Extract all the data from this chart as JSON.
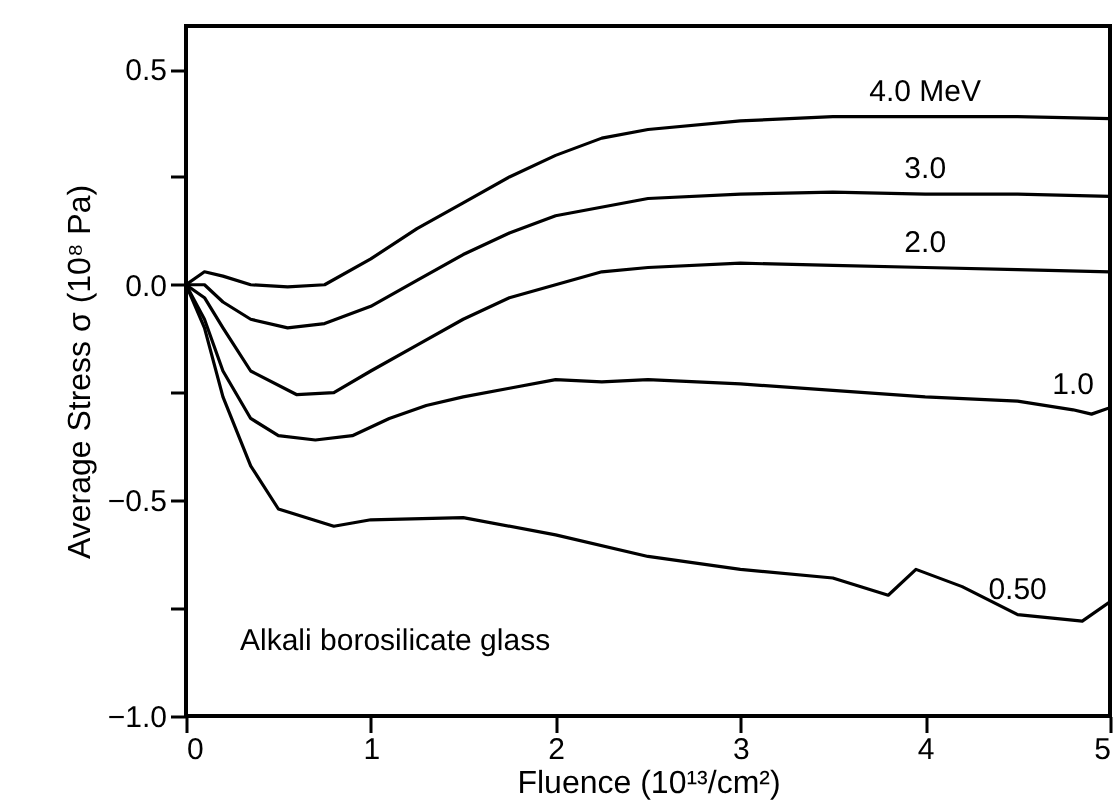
{
  "chart_data": {
    "type": "line",
    "xlabel": "Fluence (10¹³/cm²)",
    "ylabel": "Average Stress σ (10⁸ Pa)",
    "xlim": [
      0,
      5
    ],
    "xticks": [
      0,
      1,
      2,
      3,
      4,
      5
    ],
    "ylim": [
      -1.0,
      0.6
    ],
    "yticks": [
      {
        "value": -1,
        "label": "−1.0"
      },
      {
        "value": -0.75,
        "label": null
      },
      {
        "value": -0.5,
        "label": "−0.5"
      },
      {
        "value": -0.25,
        "label": null
      },
      {
        "value": 0,
        "label": "0.0"
      },
      {
        "value": 0.25,
        "label": null
      },
      {
        "value": 0.5,
        "label": "0.5"
      }
    ],
    "line_style": "solid",
    "annotations": [
      "Alkali borosilicate glass"
    ],
    "series": [
      {
        "name": "4.0 MeV",
        "color": "#000000",
        "x": [
          0,
          0.1,
          0.2,
          0.35,
          0.55,
          0.75,
          1.0,
          1.25,
          1.5,
          1.75,
          2.0,
          2.25,
          2.5,
          3.0,
          3.5,
          4.0,
          4.5,
          5.0
        ],
        "values": [
          0,
          0.03,
          0.02,
          0.0,
          -0.005,
          0.0,
          0.06,
          0.13,
          0.19,
          0.25,
          0.3,
          0.34,
          0.36,
          0.38,
          0.39,
          0.39,
          0.39,
          0.385
        ]
      },
      {
        "name": "3.0",
        "color": "#000000",
        "x": [
          0,
          0.1,
          0.2,
          0.35,
          0.55,
          0.75,
          1.0,
          1.25,
          1.5,
          1.75,
          2.0,
          2.5,
          3.0,
          3.5,
          4.0,
          4.5,
          5.0
        ],
        "values": [
          0,
          0.0,
          -0.04,
          -0.08,
          -0.1,
          -0.09,
          -0.05,
          0.01,
          0.07,
          0.12,
          0.16,
          0.2,
          0.21,
          0.215,
          0.21,
          0.21,
          0.205
        ]
      },
      {
        "name": "2.0",
        "color": "#000000",
        "x": [
          0,
          0.1,
          0.2,
          0.35,
          0.6,
          0.8,
          1.0,
          1.25,
          1.5,
          1.75,
          2.0,
          2.25,
          2.5,
          3.0,
          3.5,
          4.0,
          4.5,
          5.0
        ],
        "values": [
          0,
          -0.03,
          -0.1,
          -0.2,
          -0.255,
          -0.25,
          -0.2,
          -0.14,
          -0.08,
          -0.03,
          0.0,
          0.03,
          0.04,
          0.05,
          0.045,
          0.04,
          0.035,
          0.03
        ]
      },
      {
        "name": "1.0",
        "color": "#000000",
        "x": [
          0,
          0.1,
          0.2,
          0.35,
          0.5,
          0.7,
          0.9,
          1.1,
          1.3,
          1.5,
          1.75,
          2.0,
          2.25,
          2.5,
          3.0,
          3.5,
          4.0,
          4.5,
          4.8,
          4.9,
          5.0
        ],
        "values": [
          0,
          -0.08,
          -0.2,
          -0.31,
          -0.35,
          -0.36,
          -0.35,
          -0.31,
          -0.28,
          -0.26,
          -0.24,
          -0.22,
          -0.225,
          -0.22,
          -0.23,
          -0.245,
          -0.26,
          -0.27,
          -0.29,
          -0.3,
          -0.285
        ]
      },
      {
        "name": "0.50",
        "color": "#000000",
        "x": [
          0,
          0.1,
          0.2,
          0.35,
          0.5,
          0.8,
          1.0,
          1.5,
          2.0,
          2.5,
          3.0,
          3.5,
          3.8,
          3.95,
          4.2,
          4.5,
          4.85,
          5.0
        ],
        "values": [
          0,
          -0.1,
          -0.26,
          -0.42,
          -0.52,
          -0.56,
          -0.545,
          -0.54,
          -0.58,
          -0.63,
          -0.66,
          -0.68,
          -0.72,
          -0.66,
          -0.7,
          -0.765,
          -0.78,
          -0.735
        ]
      }
    ]
  }
}
